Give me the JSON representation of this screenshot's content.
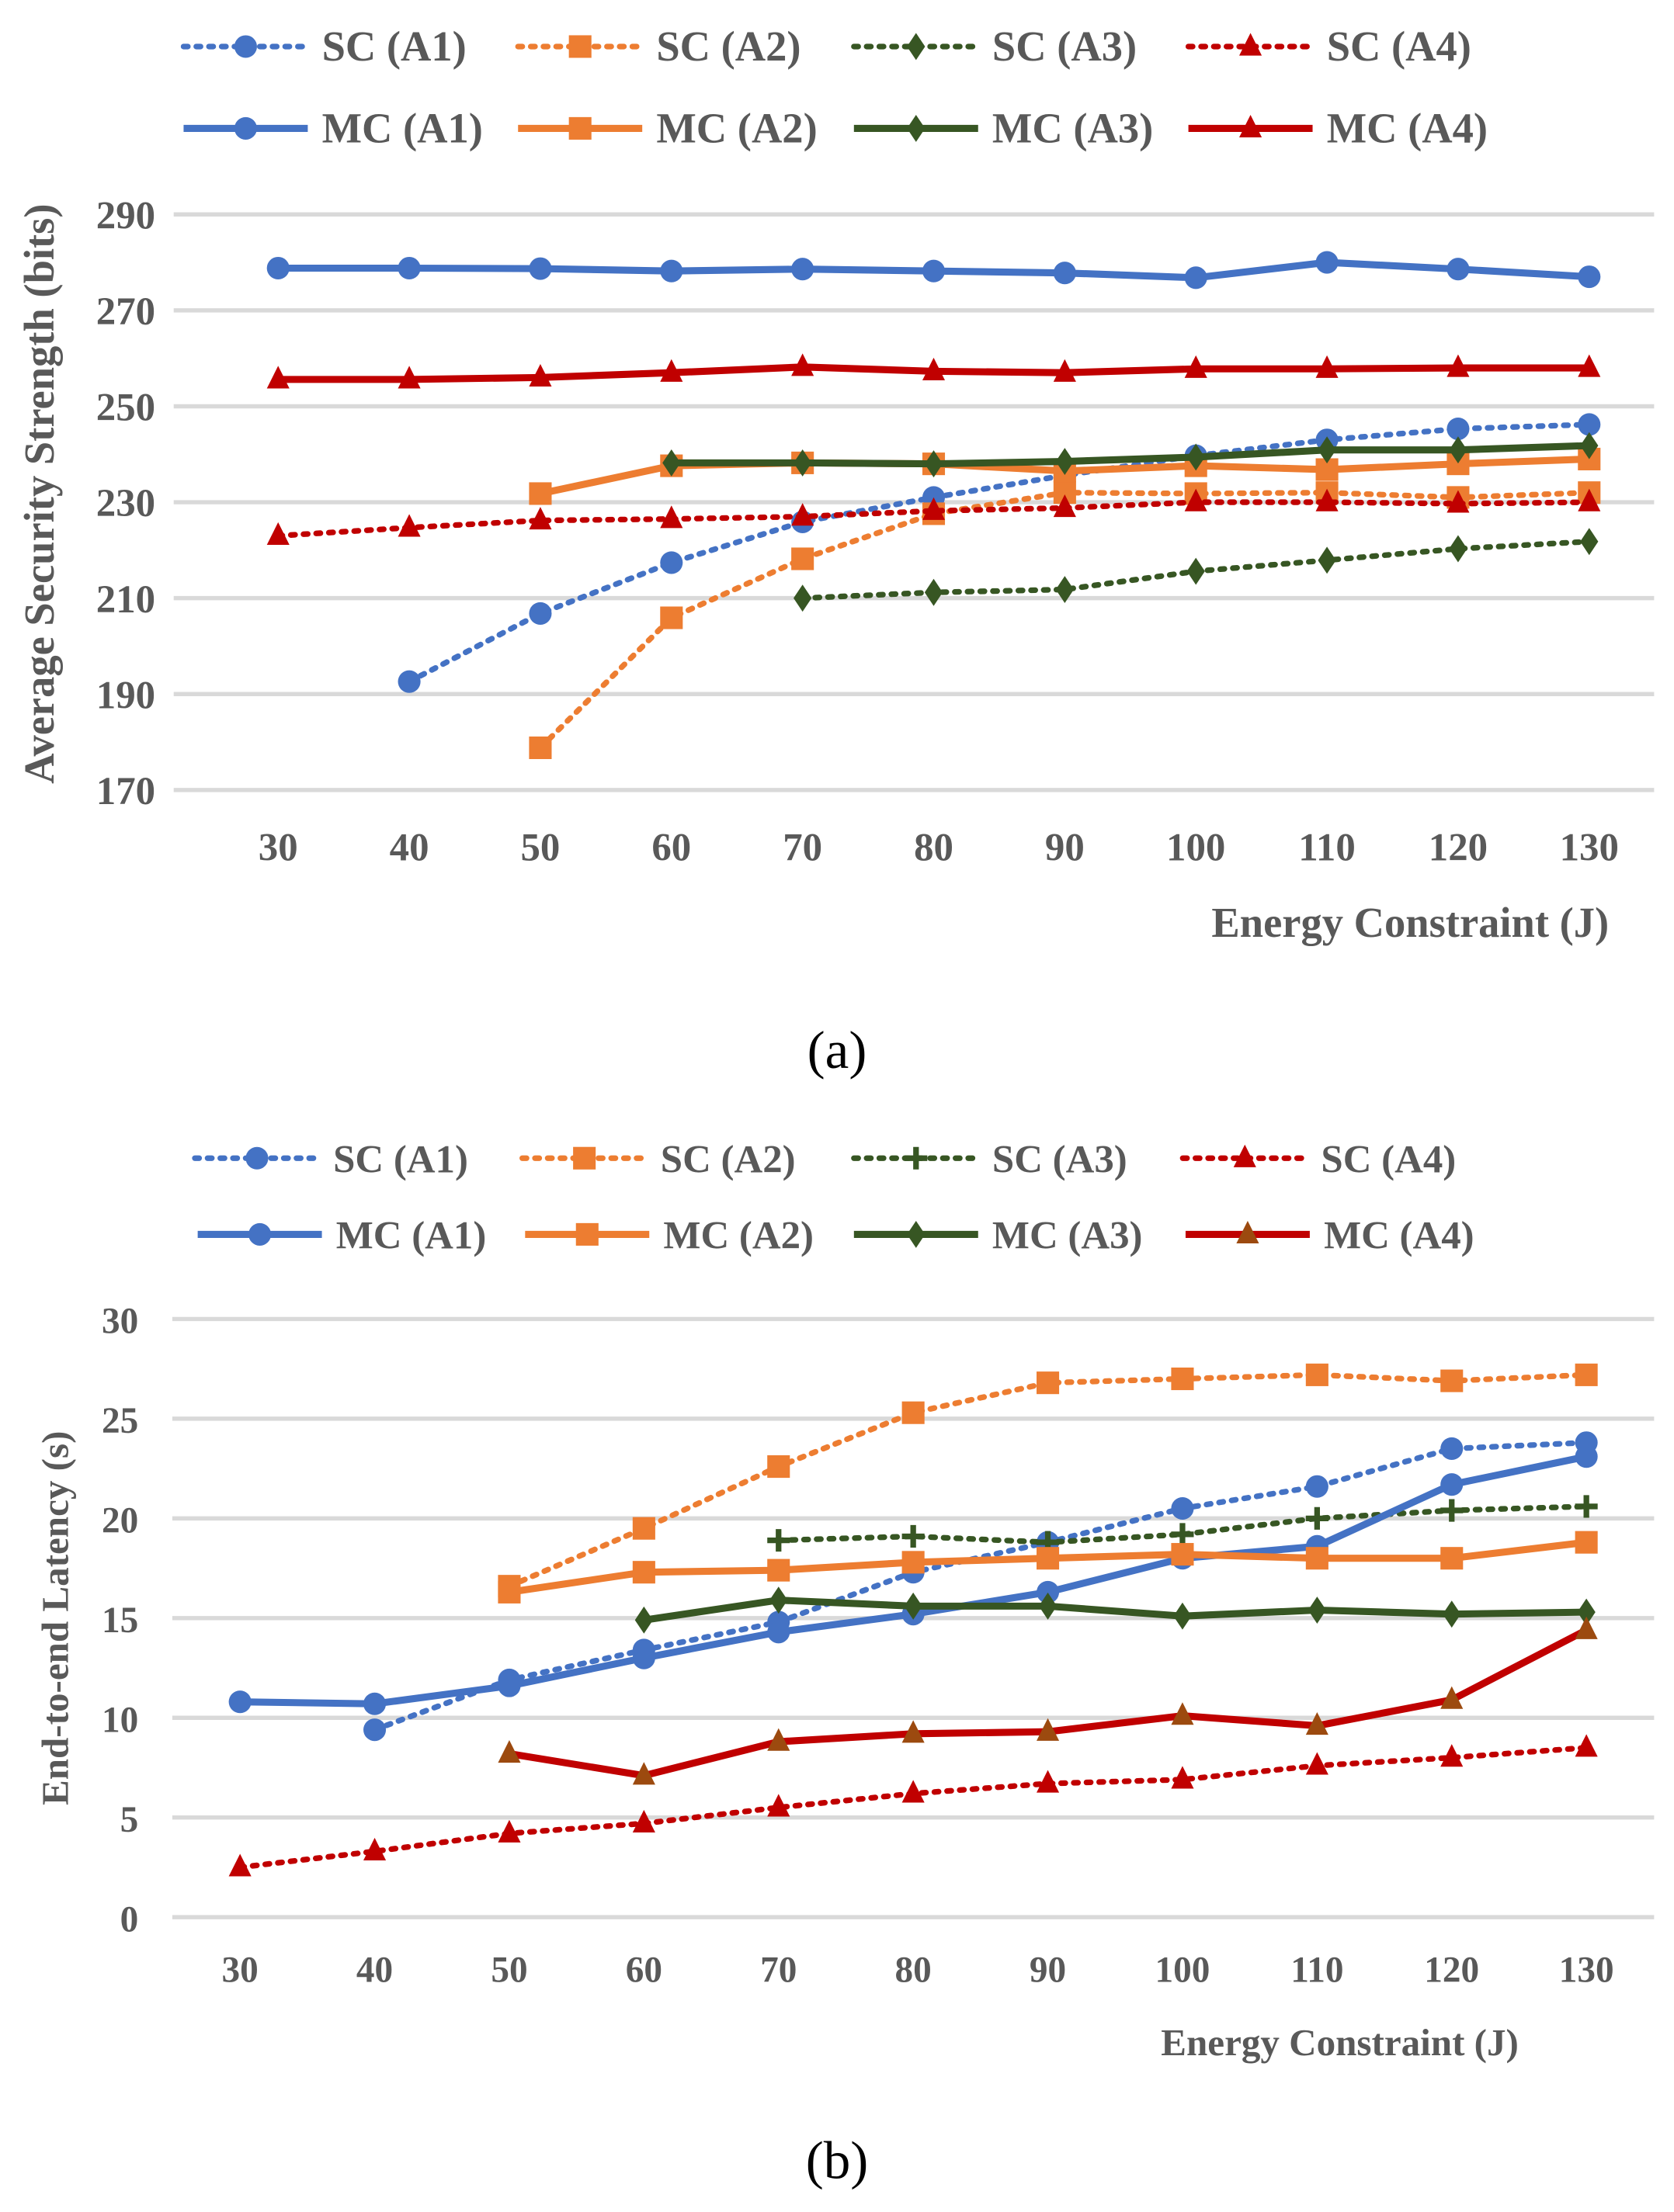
{
  "chart_data": [
    {
      "type": "line",
      "caption": "(a)",
      "xlabel": "Energy Constraint (J)",
      "ylabel": "Average Security Strength (bits)",
      "x": [
        30,
        40,
        50,
        60,
        70,
        80,
        90,
        100,
        110,
        120,
        130
      ],
      "ylim": [
        170,
        290
      ],
      "yticks": [
        170,
        190,
        210,
        230,
        250,
        270,
        290
      ],
      "grid": true,
      "legend": "top",
      "series": [
        {
          "name": "SC (A1)",
          "dash": "dotted",
          "color": "#4472C4",
          "marker": "circle",
          "values": [
            null,
            192.6,
            206.8,
            217.4,
            225.9,
            231,
            235.6,
            239.7,
            243,
            245.3,
            246.2
          ]
        },
        {
          "name": "SC (A2)",
          "dash": "dotted",
          "color": "#ED7D31",
          "marker": "square",
          "values": [
            null,
            null,
            178.8,
            205.9,
            218.2,
            227.6,
            232,
            231.8,
            232,
            231,
            232
          ]
        },
        {
          "name": "SC (A3)",
          "dash": "dotted",
          "color": "#375623",
          "marker": "diamond",
          "values": [
            null,
            null,
            null,
            null,
            210,
            211.2,
            211.8,
            215.6,
            217.9,
            220.3,
            221.8
          ]
        },
        {
          "name": "SC (A4)",
          "dash": "dotted",
          "color": "#C00000",
          "marker": "triangle",
          "values": [
            223,
            224.7,
            226.2,
            226.5,
            227,
            228.2,
            228.8,
            230,
            230,
            229.7,
            230
          ]
        },
        {
          "name": "MC (A1)",
          "dash": "solid",
          "color": "#4472C4",
          "marker": "circle",
          "values": [
            278.8,
            278.8,
            278.7,
            278.2,
            278.6,
            278.2,
            277.8,
            276.8,
            280,
            278.6,
            277
          ]
        },
        {
          "name": "MC (A2)",
          "dash": "solid",
          "color": "#ED7D31",
          "marker": "square",
          "values": [
            null,
            null,
            231.8,
            237.6,
            238.2,
            238,
            236.5,
            237.6,
            236.8,
            238,
            239
          ]
        },
        {
          "name": "MC (A3)",
          "dash": "solid",
          "color": "#375623",
          "marker": "diamond",
          "values": [
            null,
            null,
            null,
            238.2,
            238.2,
            238,
            238.5,
            239.4,
            240.9,
            240.9,
            241.8
          ]
        },
        {
          "name": "MC (A4)",
          "dash": "solid",
          "color": "#C00000",
          "marker": "triangle",
          "values": [
            255.6,
            255.6,
            256,
            257,
            258.2,
            257.3,
            257,
            257.8,
            257.8,
            258,
            258
          ]
        }
      ]
    },
    {
      "type": "line",
      "caption": "(b)",
      "xlabel": "Energy Constraint (J)",
      "ylabel": "End-to-end Latency (s)",
      "x": [
        30,
        40,
        50,
        60,
        70,
        80,
        90,
        100,
        110,
        120,
        130
      ],
      "ylim": [
        0,
        30
      ],
      "yticks": [
        0,
        5,
        10,
        15,
        20,
        25,
        30
      ],
      "grid": true,
      "legend": "top",
      "series": [
        {
          "name": "SC (A1)",
          "dash": "dotted",
          "color": "#4472C4",
          "marker": "circle",
          "values": [
            null,
            9.4,
            11.9,
            13.4,
            14.8,
            17.3,
            18.8,
            20.5,
            21.6,
            23.5,
            23.8
          ]
        },
        {
          "name": "SC (A2)",
          "dash": "dotted",
          "color": "#ED7D31",
          "marker": "square",
          "values": [
            null,
            null,
            16.6,
            19.5,
            22.6,
            25.3,
            26.8,
            27,
            27.2,
            26.9,
            27.2
          ]
        },
        {
          "name": "SC (A3)",
          "dash": "dotted",
          "color": "#375623",
          "marker": "plus",
          "values": [
            null,
            null,
            null,
            null,
            18.9,
            19.1,
            18.8,
            19.2,
            20,
            20.4,
            20.6
          ]
        },
        {
          "name": "SC (A4)",
          "dash": "dotted",
          "color": "#C00000",
          "marker": "triangle",
          "values": [
            2.5,
            3.3,
            4.2,
            4.7,
            5.5,
            6.2,
            6.7,
            6.9,
            7.6,
            8,
            8.5
          ]
        },
        {
          "name": "MC (A1)",
          "dash": "solid",
          "color": "#4472C4",
          "marker": "circle",
          "values": [
            10.8,
            10.7,
            11.6,
            13,
            14.3,
            15.2,
            16.3,
            18,
            18.6,
            21.7,
            23.1
          ]
        },
        {
          "name": "MC (A2)",
          "dash": "solid",
          "color": "#ED7D31",
          "marker": "square",
          "values": [
            null,
            null,
            16.3,
            17.3,
            17.4,
            17.8,
            18,
            18.2,
            18,
            18,
            18.8
          ]
        },
        {
          "name": "MC (A3)",
          "dash": "solid",
          "color": "#375623",
          "marker": "diamond",
          "values": [
            null,
            null,
            null,
            14.9,
            15.9,
            15.6,
            15.6,
            15.1,
            15.4,
            15.2,
            15.3
          ]
        },
        {
          "name": "MC (A4)",
          "dash": "solid",
          "color": "#C00000",
          "markerColor": "#9C4A0F",
          "marker": "triangle",
          "values": [
            null,
            null,
            8.2,
            7.1,
            8.8,
            9.2,
            9.3,
            10.1,
            9.6,
            10.9,
            14.4
          ]
        }
      ]
    }
  ]
}
